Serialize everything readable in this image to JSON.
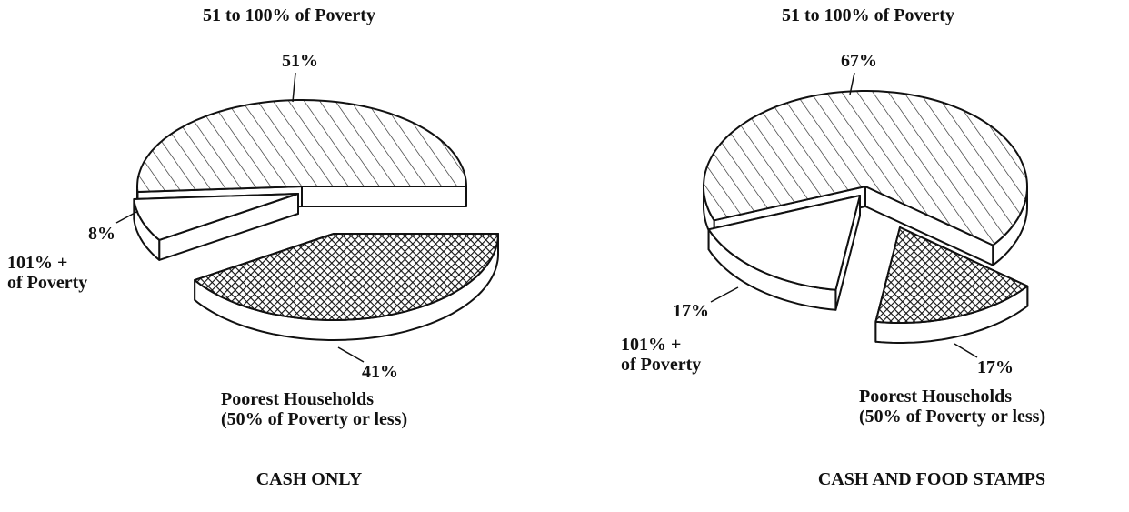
{
  "chart_data": [
    {
      "type": "pie",
      "title": "CASH ONLY",
      "categories": [
        "51 to 100% of Poverty",
        "101% +\nof Poverty",
        "Poorest Households\n(50% of Poverty or less)"
      ],
      "values": [
        51,
        8,
        41
      ],
      "value_labels": [
        "51%",
        "8%",
        "41%"
      ]
    },
    {
      "type": "pie",
      "title": "CASH AND FOOD STAMPS",
      "categories": [
        "51 to 100% of Poverty",
        "101% +\nof Poverty",
        "Poorest Households\n(50% of Poverty or less)"
      ],
      "values": [
        67,
        17,
        17
      ],
      "value_labels": [
        "67%",
        "17%",
        "17%"
      ]
    }
  ]
}
